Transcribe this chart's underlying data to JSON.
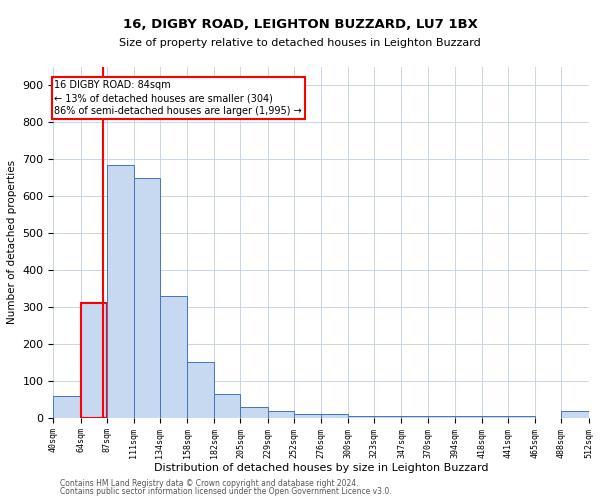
{
  "title1": "16, DIGBY ROAD, LEIGHTON BUZZARD, LU7 1BX",
  "title2": "Size of property relative to detached houses in Leighton Buzzard",
  "xlabel": "Distribution of detached houses by size in Leighton Buzzard",
  "ylabel": "Number of detached properties",
  "footer1": "Contains HM Land Registry data © Crown copyright and database right 2024.",
  "footer2": "Contains public sector information licensed under the Open Government Licence v3.0.",
  "annotation_title": "16 DIGBY ROAD: 84sqm",
  "annotation_line1": "← 13% of detached houses are smaller (304)",
  "annotation_line2": "86% of semi-detached houses are larger (1,995) →",
  "property_size": 84,
  "bar_left_edges": [
    40,
    64,
    87,
    111,
    134,
    158,
    182,
    205,
    229,
    252,
    276,
    300,
    323,
    347,
    370,
    394,
    418,
    441,
    465,
    488
  ],
  "bar_widths": [
    24,
    23,
    24,
    23,
    24,
    24,
    23,
    24,
    23,
    24,
    24,
    23,
    24,
    23,
    24,
    24,
    23,
    24,
    23,
    24
  ],
  "bar_heights": [
    60,
    310,
    685,
    650,
    330,
    150,
    65,
    30,
    18,
    10,
    10,
    5,
    5,
    5,
    5,
    5,
    5,
    5,
    0,
    18
  ],
  "bar_color": "#c6d9f0",
  "bar_edge_color": "#4472c4",
  "highlight_bar_edge_color": "#ff0000",
  "property_line_color": "#ff0000",
  "ylim": [
    0,
    950
  ],
  "yticks": [
    0,
    100,
    200,
    300,
    400,
    500,
    600,
    700,
    800,
    900
  ],
  "tick_labels": [
    "40sqm",
    "64sqm",
    "87sqm",
    "111sqm",
    "134sqm",
    "158sqm",
    "182sqm",
    "205sqm",
    "229sqm",
    "252sqm",
    "276sqm",
    "300sqm",
    "323sqm",
    "347sqm",
    "370sqm",
    "394sqm",
    "418sqm",
    "441sqm",
    "465sqm",
    "488sqm",
    "512sqm"
  ],
  "background_color": "#ffffff",
  "grid_color": "#c8d4e8",
  "annotation_box_color": "#ffffff",
  "annotation_box_edge": "#ff0000",
  "title1_fontsize": 9.5,
  "title2_fontsize": 8,
  "xlabel_fontsize": 8,
  "ylabel_fontsize": 7.5,
  "ytick_fontsize": 8,
  "xtick_fontsize": 6,
  "footer_fontsize": 5.5,
  "ann_fontsize": 7
}
